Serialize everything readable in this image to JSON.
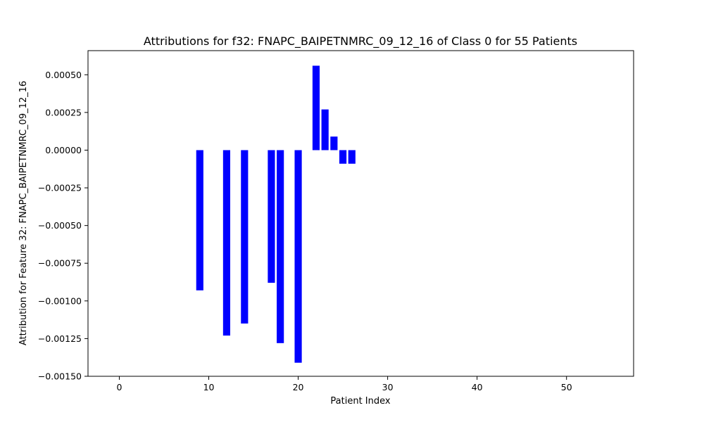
{
  "chart_data": {
    "type": "bar",
    "title": "Attributions for f32: FNAPC_BAIPETNMRC_09_12_16 of Class 0 for 55 Patients",
    "xlabel": "Patient Index",
    "ylabel": "Attribution for Feature 32: FNAPC_BAIPETNMRC_09_12_16",
    "xlim": [
      -3.5,
      57.5
    ],
    "ylim": [
      -0.0015,
      0.00066
    ],
    "xticks": [
      0,
      10,
      20,
      30,
      40,
      50
    ],
    "yticks": [
      -0.0015,
      -0.00125,
      -0.001,
      -0.00075,
      -0.0005,
      -0.00025,
      0.0,
      0.00025,
      0.0005
    ],
    "ytick_labels": [
      "−0.00150",
      "−0.00125",
      "−0.00100",
      "−0.00075",
      "−0.00050",
      "−0.00025",
      "0.00000",
      "0.00025",
      "0.00050"
    ],
    "bar_color": "#0000ff",
    "grid": false,
    "legend": "none",
    "x": [
      9,
      12,
      14,
      17,
      18,
      20,
      22,
      23,
      24,
      25,
      26
    ],
    "values": [
      -0.00093,
      -0.00123,
      -0.00115,
      -0.00088,
      -0.00128,
      -0.00141,
      0.00056,
      0.00027,
      9e-05,
      -9e-05,
      -9e-05
    ]
  }
}
